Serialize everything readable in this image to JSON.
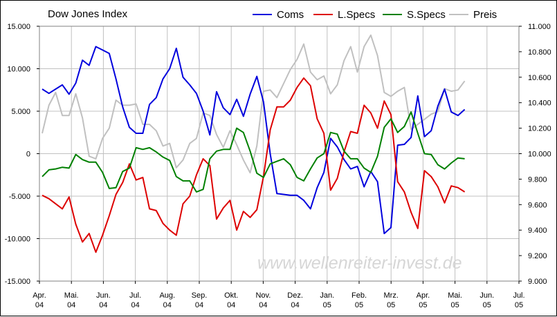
{
  "chart_data": {
    "type": "line",
    "title": "Dow Jones Index",
    "watermark": "www.wellenreiter-invest.de",
    "grid": true,
    "legend_placement": "top-right",
    "x_labels": [
      [
        "Apr.",
        "04"
      ],
      [
        "Mai.",
        "04"
      ],
      [
        "Jun.",
        "04"
      ],
      [
        "Jul.",
        "04"
      ],
      [
        "Aug.",
        "04"
      ],
      [
        "Sep.",
        "04"
      ],
      [
        "Okt.",
        "04"
      ],
      [
        "Nov.",
        "04"
      ],
      [
        "Dez.",
        "04"
      ],
      [
        "Jan.",
        "05"
      ],
      [
        "Feb.",
        "05"
      ],
      [
        "Mrz.",
        "05"
      ],
      [
        "Apr.",
        "05"
      ],
      [
        "Mai.",
        "05"
      ],
      [
        "Jun.",
        "05"
      ],
      [
        "Jul.",
        "05"
      ]
    ],
    "y_left": {
      "range": [
        -15000,
        15000
      ],
      "ticks": [
        15000,
        10000,
        5000,
        0,
        -5000,
        -10000,
        -15000
      ],
      "tick_labels": [
        "15.000",
        "10.000",
        "5.000",
        "0",
        "-5.000",
        "-10.000",
        "-15.000"
      ]
    },
    "y_right": {
      "range": [
        9000,
        11000
      ],
      "ticks": [
        11000,
        10800,
        10600,
        10400,
        10200,
        10000,
        9800,
        9600,
        9400,
        9200,
        9000
      ],
      "tick_labels": [
        "11.000",
        "10.800",
        "10.600",
        "10.400",
        "10.200",
        "10.000",
        "9.800",
        "9.600",
        "9.400",
        "9.200",
        "9.000"
      ]
    },
    "series": [
      {
        "name": "Coms",
        "axis": "left",
        "color": "#0000dd",
        "values": [
          7600,
          7100,
          7600,
          8100,
          7000,
          8300,
          11000,
          10400,
          12600,
          12200,
          11800,
          8800,
          5500,
          3100,
          2400,
          2400,
          5800,
          6600,
          8800,
          10000,
          12400,
          9000,
          8100,
          7100,
          5000,
          2200,
          7300,
          5400,
          4600,
          6400,
          4400,
          7000,
          9100,
          6100,
          0,
          -4700,
          -4800,
          -4900,
          -4900,
          -5500,
          -6500,
          -4000,
          -2200,
          1800,
          800,
          -700,
          -1800,
          -1500,
          -3900,
          -2100,
          -3300,
          -9400,
          -8700,
          1000,
          1100,
          1900,
          6800,
          2000,
          2700,
          5600,
          7600,
          4900,
          4500,
          5200
        ]
      },
      {
        "name": "L.Specs",
        "axis": "left",
        "color": "#dd0000",
        "values": [
          -4900,
          -5300,
          -5900,
          -6500,
          -5100,
          -8300,
          -10400,
          -9400,
          -11600,
          -9600,
          -7300,
          -4800,
          -3400,
          -1200,
          -3100,
          -2800,
          -6500,
          -6700,
          -8200,
          -9000,
          -9600,
          -5900,
          -5000,
          -2500,
          -600,
          -1400,
          -7700,
          -6400,
          -5500,
          -9000,
          -6800,
          -7500,
          -6600,
          -2700,
          2800,
          5500,
          5500,
          6300,
          7800,
          8900,
          8000,
          4100,
          2400,
          -4300,
          -2900,
          200,
          2600,
          2400,
          5700,
          4800,
          3000,
          6200,
          4600,
          -3300,
          -4500,
          -6900,
          -8800,
          -2000,
          -2700,
          -3900,
          -5800,
          -3800,
          -4000,
          -4500
        ]
      },
      {
        "name": "S.Specs",
        "axis": "left",
        "color": "#008000",
        "values": [
          -2700,
          -1900,
          -1800,
          -1600,
          -1700,
          -100,
          -700,
          -1000,
          -1000,
          -2200,
          -4100,
          -4000,
          -2100,
          -1700,
          700,
          500,
          700,
          200,
          -400,
          -800,
          -2700,
          -3200,
          -3200,
          -4500,
          -4200,
          -600,
          300,
          500,
          500,
          3000,
          2500,
          300,
          -2300,
          -2800,
          -1200,
          -900,
          -600,
          -1300,
          -2800,
          -3200,
          -1800,
          -500,
          0,
          2500,
          2300,
          300,
          -600,
          -600,
          -1700,
          -2200,
          -300,
          3100,
          4100,
          2500,
          3200,
          4900,
          2400,
          0,
          -100,
          -1300,
          -1800,
          -1100,
          -500,
          -600
        ]
      },
      {
        "name": "Preis",
        "axis": "right",
        "color": "#c0c0c0",
        "values": [
          10160,
          10380,
          10480,
          10300,
          10300,
          10470,
          10280,
          9980,
          9960,
          10120,
          10200,
          10420,
          10380,
          10380,
          10390,
          10230,
          10230,
          10180,
          10060,
          10080,
          9890,
          9950,
          10080,
          10120,
          10320,
          10300,
          10150,
          10050,
          10180,
          10070,
          9950,
          9850,
          10060,
          10490,
          10500,
          10440,
          10550,
          10660,
          10740,
          10860,
          10640,
          10580,
          10610,
          10470,
          10540,
          10730,
          10840,
          10640,
          10840,
          10930,
          10770,
          10480,
          10450,
          10490,
          10520,
          10190,
          10230,
          10270,
          10310,
          10330,
          10510,
          10490,
          10500,
          10570
        ]
      }
    ]
  }
}
